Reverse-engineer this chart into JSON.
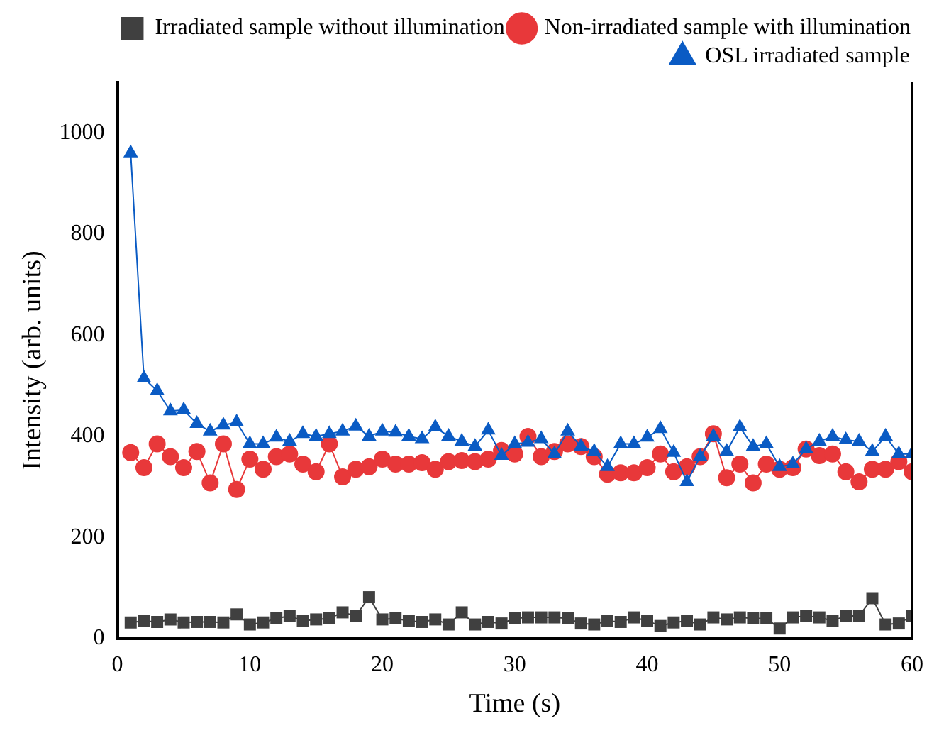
{
  "chart_data": {
    "type": "line",
    "xlabel": "Time (s)",
    "ylabel": "Intensity (arb. units)",
    "x": [
      1,
      2,
      3,
      4,
      5,
      6,
      7,
      8,
      9,
      10,
      11,
      12,
      13,
      14,
      15,
      16,
      17,
      18,
      19,
      20,
      21,
      22,
      23,
      24,
      25,
      26,
      27,
      28,
      29,
      30,
      31,
      32,
      33,
      34,
      35,
      36,
      37,
      38,
      39,
      40,
      41,
      42,
      43,
      44,
      45,
      46,
      47,
      48,
      49,
      50,
      51,
      52,
      53,
      54,
      55,
      56,
      57,
      58,
      59,
      60
    ],
    "series": [
      {
        "name": "Irradiated sample without illumination",
        "color": "#404040",
        "marker": "square",
        "values": [
          32,
          35,
          33,
          38,
          32,
          33,
          33,
          32,
          48,
          28,
          32,
          40,
          45,
          35,
          38,
          40,
          52,
          45,
          82,
          38,
          40,
          35,
          33,
          38,
          28,
          52,
          28,
          33,
          30,
          40,
          42,
          42,
          42,
          40,
          30,
          28,
          35,
          33,
          42,
          35,
          25,
          32,
          35,
          28,
          42,
          38,
          42,
          40,
          40,
          20,
          42,
          45,
          42,
          35,
          45,
          45,
          80,
          28,
          30,
          45
        ]
      },
      {
        "name": "Non-irradiated sample with illumination",
        "color": "#e8383a",
        "marker": "circle",
        "values": [
          368,
          338,
          385,
          360,
          338,
          370,
          308,
          385,
          295,
          355,
          335,
          360,
          365,
          345,
          330,
          385,
          320,
          335,
          340,
          355,
          345,
          345,
          348,
          335,
          350,
          352,
          350,
          355,
          372,
          365,
          400,
          360,
          370,
          385,
          380,
          360,
          325,
          328,
          328,
          338,
          365,
          330,
          340,
          360,
          405,
          318,
          345,
          308,
          345,
          335,
          338,
          375,
          362,
          365,
          330,
          310,
          335,
          335,
          350,
          330
        ]
      },
      {
        "name": "OSL irradiated sample",
        "color": "#0a5bc4",
        "marker": "triangle",
        "values": [
          960,
          515,
          490,
          450,
          452,
          425,
          410,
          422,
          428,
          385,
          385,
          398,
          390,
          405,
          400,
          405,
          410,
          420,
          400,
          410,
          408,
          400,
          395,
          418,
          400,
          390,
          380,
          412,
          362,
          385,
          388,
          395,
          365,
          410,
          380,
          370,
          340,
          385,
          385,
          398,
          415,
          368,
          310,
          360,
          400,
          370,
          418,
          380,
          385,
          340,
          345,
          375,
          390,
          400,
          393,
          390,
          370,
          400,
          365,
          365
        ]
      }
    ],
    "xlim": [
      0,
      60
    ],
    "xticks": [
      0,
      10,
      20,
      30,
      40,
      50,
      60
    ],
    "ylim": [
      0,
      1100
    ],
    "yticks": [
      0,
      200,
      400,
      600,
      800,
      1000
    ],
    "grid": false,
    "legend": "top right",
    "line_style": "solid"
  }
}
